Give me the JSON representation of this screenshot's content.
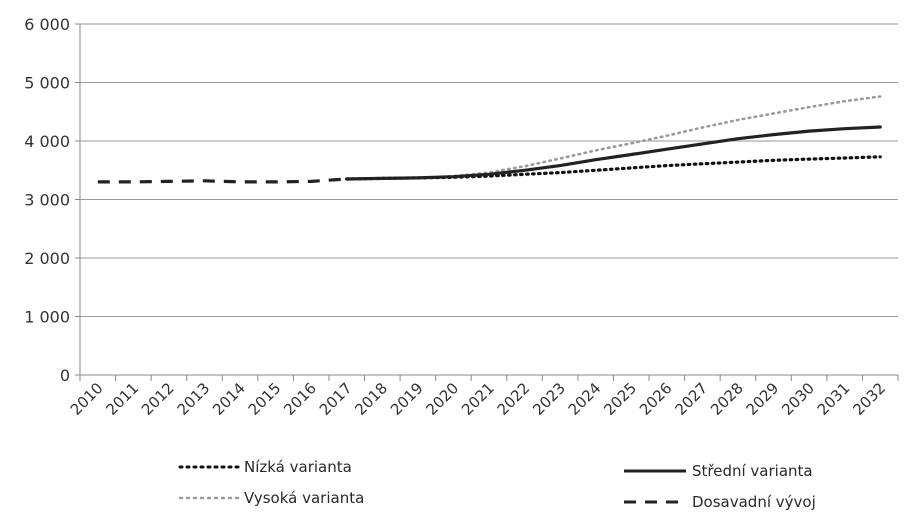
{
  "chart_data": {
    "type": "line",
    "title": "",
    "xlabel": "",
    "ylabel": "",
    "ylim": [
      0,
      6000
    ],
    "y_ticks": [
      "0",
      "1 000",
      "2 000",
      "3 000",
      "4 000",
      "5 000",
      "6 000"
    ],
    "y_tick_values": [
      0,
      1000,
      2000,
      3000,
      4000,
      5000,
      6000
    ],
    "grid": true,
    "legend_position": "bottom",
    "categories": [
      "2010",
      "2011",
      "2012",
      "2013",
      "2014",
      "2015",
      "2016",
      "2017",
      "2018",
      "2019",
      "2020",
      "2021",
      "2022",
      "2023",
      "2024",
      "2025",
      "2026",
      "2027",
      "2028",
      "2029",
      "2030",
      "2031",
      "2032"
    ],
    "series": [
      {
        "name": "Nízká varianta",
        "style": "dotted",
        "color": "#111111",
        "x": [
          "2017",
          "2018",
          "2019",
          "2020",
          "2021",
          "2022",
          "2023",
          "2024",
          "2025",
          "2026",
          "2027",
          "2028",
          "2029",
          "2030",
          "2031",
          "2032"
        ],
        "values": [
          3350,
          3360,
          3370,
          3380,
          3400,
          3430,
          3460,
          3500,
          3540,
          3580,
          3610,
          3640,
          3670,
          3690,
          3710,
          3730
        ]
      },
      {
        "name": "Střední varianta",
        "style": "solid",
        "color": "#222222",
        "x": [
          "2017",
          "2018",
          "2019",
          "2020",
          "2021",
          "2022",
          "2023",
          "2024",
          "2025",
          "2026",
          "2027",
          "2028",
          "2029",
          "2030",
          "2031",
          "2032"
        ],
        "values": [
          3350,
          3360,
          3370,
          3390,
          3430,
          3500,
          3580,
          3680,
          3770,
          3860,
          3950,
          4040,
          4110,
          4170,
          4210,
          4240
        ]
      },
      {
        "name": "Vysoká varianta",
        "style": "dotted-light",
        "color": "#9a9a9a",
        "x": [
          "2017",
          "2018",
          "2019",
          "2020",
          "2021",
          "2022",
          "2023",
          "2024",
          "2025",
          "2026",
          "2027",
          "2028",
          "2029",
          "2030",
          "2031",
          "2032"
        ],
        "values": [
          3350,
          3360,
          3370,
          3400,
          3460,
          3570,
          3700,
          3840,
          3960,
          4090,
          4230,
          4360,
          4470,
          4580,
          4680,
          4760
        ]
      },
      {
        "name": "Dosavadní vývoj",
        "style": "dashed",
        "color": "#222222",
        "x": [
          "2010",
          "2011",
          "2012",
          "2013",
          "2014",
          "2015",
          "2016",
          "2017"
        ],
        "values": [
          3300,
          3300,
          3310,
          3320,
          3300,
          3300,
          3310,
          3350
        ]
      }
    ]
  }
}
